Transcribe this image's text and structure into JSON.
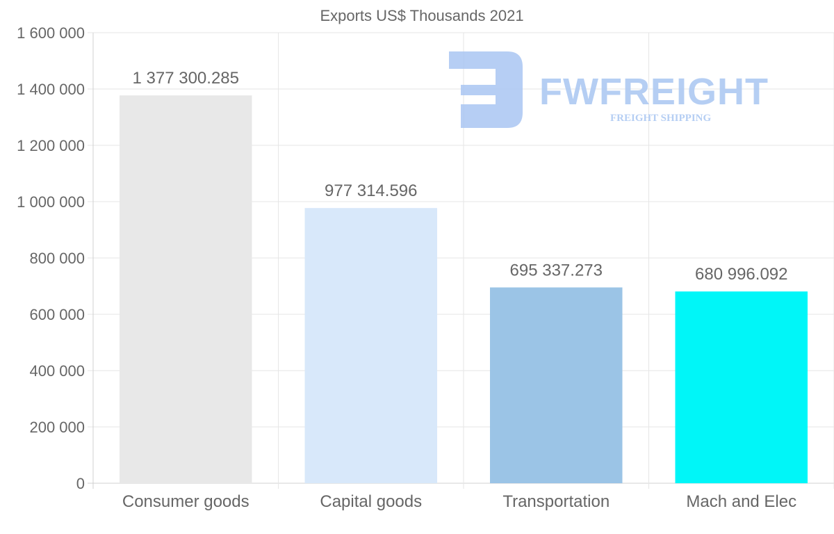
{
  "chart_data": {
    "type": "bar",
    "title": "Exports US$ Thousands 2021",
    "xlabel": "",
    "ylabel": "",
    "categories": [
      "Consumer goods",
      "Capital goods",
      "Transportation",
      "Mach and Elec"
    ],
    "values": [
      1377300.285,
      977314.596,
      695337.273,
      680996.092
    ],
    "data_labels": [
      "1 377 300.285",
      "977 314.596",
      "695 337.273",
      "680 996.092"
    ],
    "colors": [
      "#e8e8e8",
      "#d8e8fa",
      "#9bc4e6",
      "#00f6f8"
    ],
    "ylim": [
      0,
      1600000
    ],
    "yticks": [
      0,
      200000,
      400000,
      600000,
      800000,
      1000000,
      1200000,
      1400000,
      1600000
    ],
    "ytick_labels": [
      "0",
      "200 000",
      "400 000",
      "600 000",
      "800 000",
      "1 000 000",
      "1 200 000",
      "1 400 000",
      "1 600 000"
    ],
    "grid": true,
    "legend": "none"
  },
  "watermark": {
    "brand": "FWFREIGHT",
    "tagline": "FREIGHT SHIPPING",
    "color": "#a9c6f2"
  }
}
